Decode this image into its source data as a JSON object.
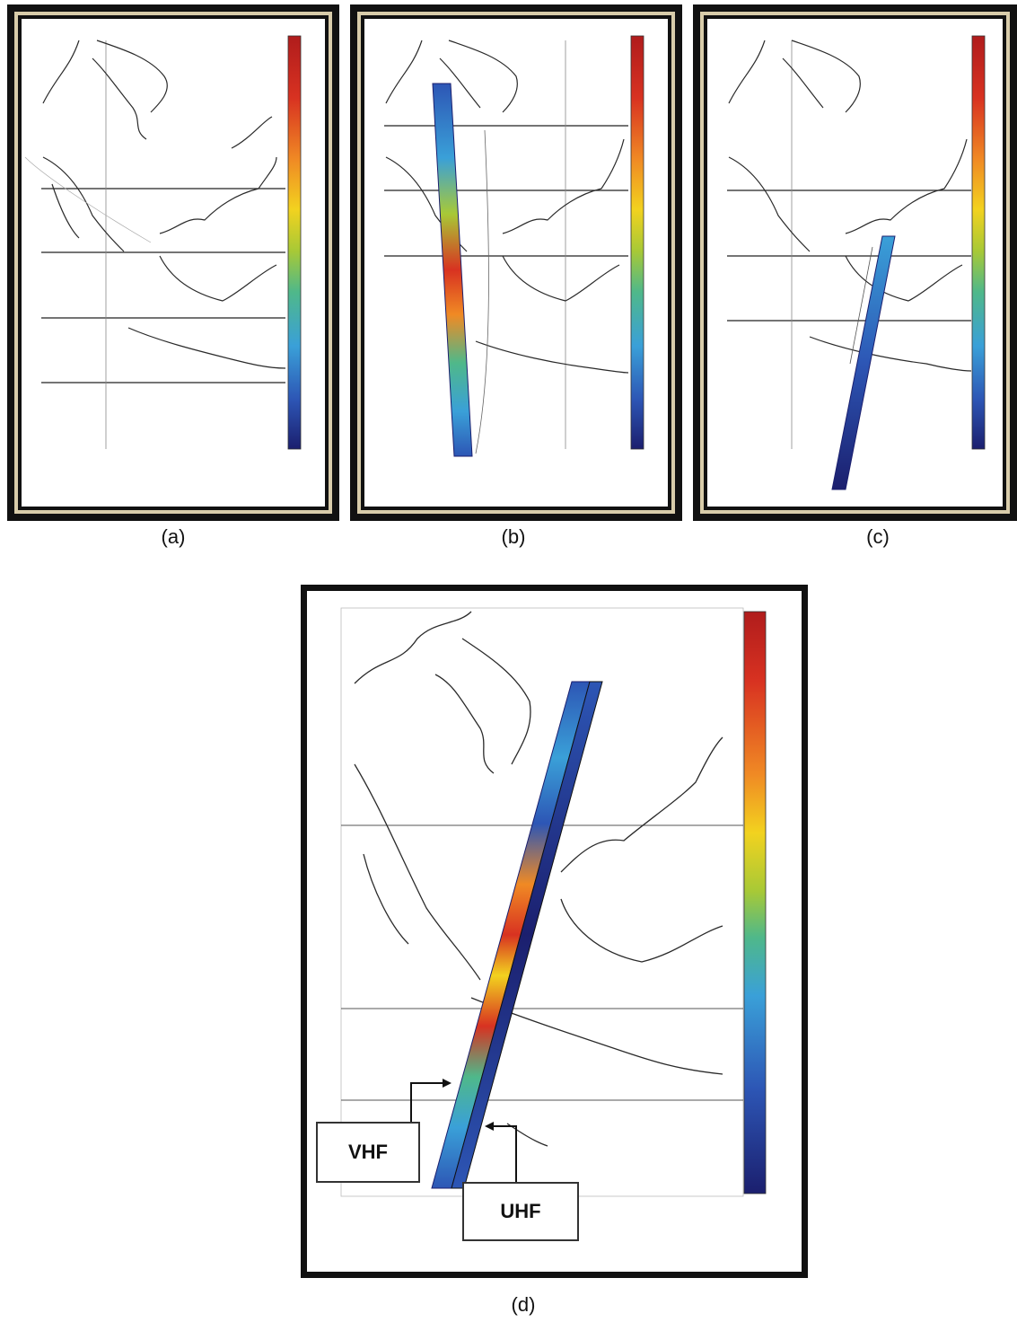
{
  "captions": {
    "a": "(a)",
    "b": "(b)",
    "c": "(c)",
    "d": "(d)"
  },
  "annotations": {
    "vhf": "VHF",
    "uhf": "UHF"
  },
  "colors": {
    "frame": "#111111",
    "frame_inner_gold": "#c9b88a",
    "coastline": "#2a2a2a",
    "gridline": "#222222",
    "colormap": [
      "#1b1f6e",
      "#2d56b5",
      "#3aa0d8",
      "#4fb88a",
      "#a8c936",
      "#f2d21f",
      "#f08a24",
      "#d83221",
      "#b01c1c"
    ]
  }
}
